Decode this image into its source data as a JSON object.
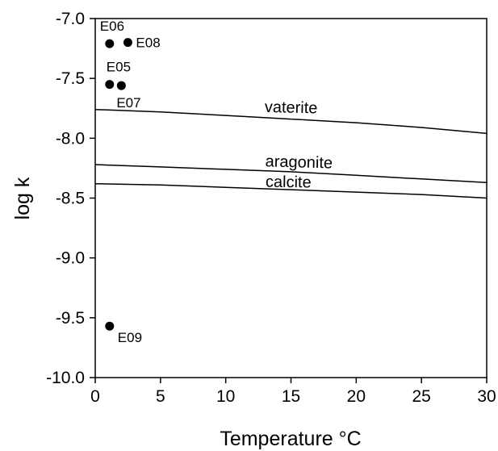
{
  "chart_data": {
    "type": "scatter",
    "title": "",
    "xlabel": "Temperature °C",
    "ylabel": "log k",
    "xlim": [
      0,
      30
    ],
    "ylim": [
      -10.0,
      -7.0
    ],
    "x_ticks": [
      0,
      5,
      10,
      15,
      20,
      25,
      30
    ],
    "y_ticks": [
      -10.0,
      -9.5,
      -9.0,
      -8.5,
      -8.0,
      -7.5,
      -7.0
    ],
    "x_tick_labels": [
      "0",
      "5",
      "10",
      "15",
      "20",
      "25",
      "30"
    ],
    "y_tick_labels": [
      "-10.0",
      "-9.5",
      "-9.0",
      "-8.5",
      "-8.0",
      "-7.5",
      "-7.0"
    ],
    "grid": false,
    "points": [
      {
        "label": "E06",
        "x": 1.1,
        "y": -7.21
      },
      {
        "label": "E08",
        "x": 2.5,
        "y": -7.2
      },
      {
        "label": "E05",
        "x": 1.1,
        "y": -7.55
      },
      {
        "label": "E07",
        "x": 2.0,
        "y": -7.56
      },
      {
        "label": "E09",
        "x": 1.1,
        "y": -9.57
      }
    ],
    "curves": [
      {
        "name": "vaterite",
        "x": [
          0,
          5,
          10,
          15,
          20,
          25,
          30
        ],
        "y": [
          -7.76,
          -7.78,
          -7.81,
          -7.84,
          -7.87,
          -7.91,
          -7.96
        ]
      },
      {
        "name": "aragonite",
        "x": [
          0,
          5,
          10,
          15,
          20,
          25,
          30
        ],
        "y": [
          -8.22,
          -8.24,
          -8.26,
          -8.28,
          -8.31,
          -8.34,
          -8.37
        ]
      },
      {
        "name": "calcite",
        "x": [
          0,
          5,
          10,
          15,
          20,
          25,
          30
        ],
        "y": [
          -8.38,
          -8.39,
          -8.41,
          -8.43,
          -8.45,
          -8.47,
          -8.5
        ]
      }
    ]
  }
}
